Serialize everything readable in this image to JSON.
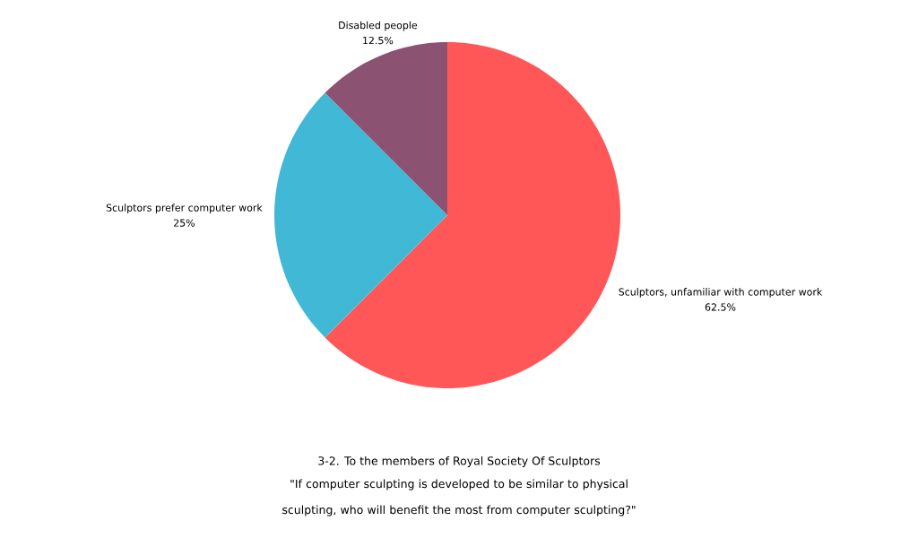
{
  "chart_data": {
    "type": "pie",
    "title": "3-2. To the members of Royal Society Of Sculptors",
    "subtitle": "\"If computer sculpting is developed to be similar to physical sculpting, who will benefit the most from computer sculpting?\"",
    "categories": [
      "Sculptors, unfamiliar with computer work",
      "Sculptors prefer computer work",
      "Disabled people"
    ],
    "values": [
      62.5,
      25,
      12.5
    ],
    "colors": [
      "#ff5757",
      "#41b8d5",
      "#8c5271"
    ],
    "value_labels": [
      "62.5%",
      "25%",
      "12.5%"
    ],
    "legend": false
  }
}
